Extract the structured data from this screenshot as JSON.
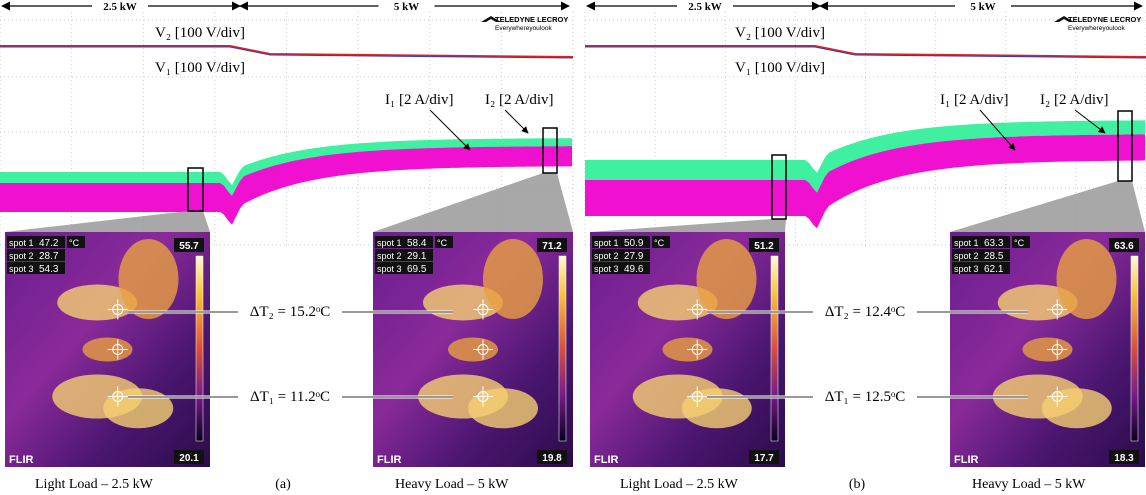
{
  "panels": [
    {
      "label": "(a)",
      "arrows": [
        "2.5 kW",
        "5 kW"
      ],
      "brand": {
        "name": "TELEDYNE LECROY",
        "tagline": "Everywhereyoulook"
      },
      "traces": {
        "v2": "V₂ [100 V/div]",
        "v1": "V₁ [100 V/div]",
        "i1": "I₁ [2 A/div]",
        "i2": "I₂ [2 A/div]"
      },
      "deltas": [
        "ΔT₂ = 15.2ᵒC",
        "ΔT₁ = 11.2ᵒC"
      ],
      "thermal": [
        {
          "spots": [
            {
              "name": "spot 1",
              "value": 47.2
            },
            {
              "name": "spot 2",
              "value": 28.7
            },
            {
              "name": "spot 3",
              "value": 54.3
            }
          ],
          "unit": "°C",
          "max": 55.7,
          "min": 20.1,
          "logo": "FLIR",
          "caption": "Light Load – 2.5 kW"
        },
        {
          "spots": [
            {
              "name": "spot 1",
              "value": 58.4
            },
            {
              "name": "spot 2",
              "value": 29.1
            },
            {
              "name": "spot 3",
              "value": 69.5
            }
          ],
          "unit": "°C",
          "max": 71.2,
          "min": 19.8,
          "logo": "FLIR",
          "caption": "Heavy Load – 5 kW"
        }
      ]
    },
    {
      "label": "(b)",
      "arrows": [
        "2.5 kW",
        "5 kW"
      ],
      "brand": {
        "name": "TELEDYNE LECROY",
        "tagline": "Everywhereyoulook"
      },
      "traces": {
        "v2": "V₂ [100 V/div]",
        "v1": "V₁ [100 V/div]",
        "i1": "I₁ [2 A/div]",
        "i2": "I₂ [2 A/div]"
      },
      "deltas": [
        "ΔT₂ = 12.4ᵒC",
        "ΔT₁ = 12.5ᵒC"
      ],
      "thermal": [
        {
          "spots": [
            {
              "name": "spot 1",
              "value": 50.9
            },
            {
              "name": "spot 2",
              "value": 27.9
            },
            {
              "name": "spot 3",
              "value": 49.6
            }
          ],
          "unit": "°C",
          "max": 51.2,
          "min": 17.7,
          "logo": "FLIR",
          "caption": "Light Load – 2.5 kW"
        },
        {
          "spots": [
            {
              "name": "spot 1",
              "value": 63.3
            },
            {
              "name": "spot 2",
              "value": 28.5
            },
            {
              "name": "spot 3",
              "value": 62.1
            }
          ],
          "unit": "°C",
          "max": 63.6,
          "min": 18.3,
          "logo": "FLIR",
          "caption": "Heavy Load – 5 kW"
        }
      ]
    }
  ]
}
